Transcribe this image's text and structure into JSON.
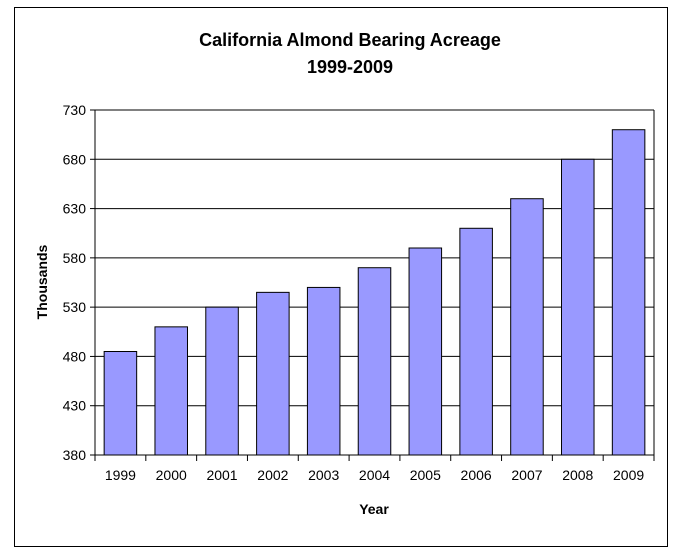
{
  "chart_data": {
    "type": "bar",
    "title": "California Almond Bearing Acreage",
    "subtitle": "1999-2009",
    "xlabel": "Year",
    "ylabel": "Thousands",
    "categories": [
      "1999",
      "2000",
      "2001",
      "2002",
      "2003",
      "2004",
      "2005",
      "2006",
      "2007",
      "2008",
      "2009"
    ],
    "values": [
      485,
      510,
      530,
      545,
      550,
      570,
      590,
      610,
      640,
      680,
      710
    ],
    "ylim": [
      380,
      730
    ],
    "yticks": [
      380,
      430,
      480,
      530,
      580,
      630,
      680,
      730
    ],
    "grid": true,
    "legend": "none",
    "bar_color": "#9999ff",
    "bar_edge_color": "#000000"
  }
}
